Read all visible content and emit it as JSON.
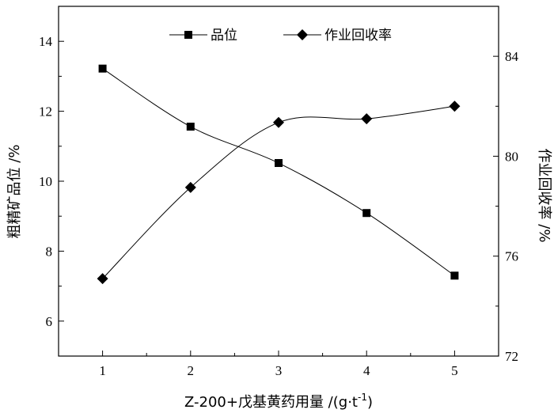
{
  "chart_data": {
    "type": "line",
    "x": [
      1,
      2,
      3,
      4,
      5
    ],
    "xlabel": "Z-200+戊基黄药用量 /(g·t",
    "xlabel_sup": "-1",
    "xlabel_close": ")",
    "xlim": [
      0.5,
      5.5
    ],
    "xticks": [
      "1",
      "2",
      "3",
      "4",
      "5"
    ],
    "ylabel_left": "粗精矿品位 /%",
    "ylim_left": [
      5,
      15
    ],
    "yticks_left": [
      "6",
      "8",
      "10",
      "12",
      "14"
    ],
    "ylabel_right": "作业回收率 /%",
    "ylim_right": [
      72,
      86
    ],
    "yticks_right": [
      "72",
      "76",
      "80",
      "84"
    ],
    "series": [
      {
        "name": "品位",
        "axis": "left",
        "marker": "square",
        "values": [
          13.22,
          11.56,
          10.52,
          9.09,
          7.3
        ]
      },
      {
        "name": "作业回收率",
        "axis": "right",
        "marker": "diamond",
        "values": [
          75.1,
          78.75,
          81.35,
          81.5,
          82.0
        ]
      }
    ],
    "legend_position": "top",
    "grid": false
  }
}
